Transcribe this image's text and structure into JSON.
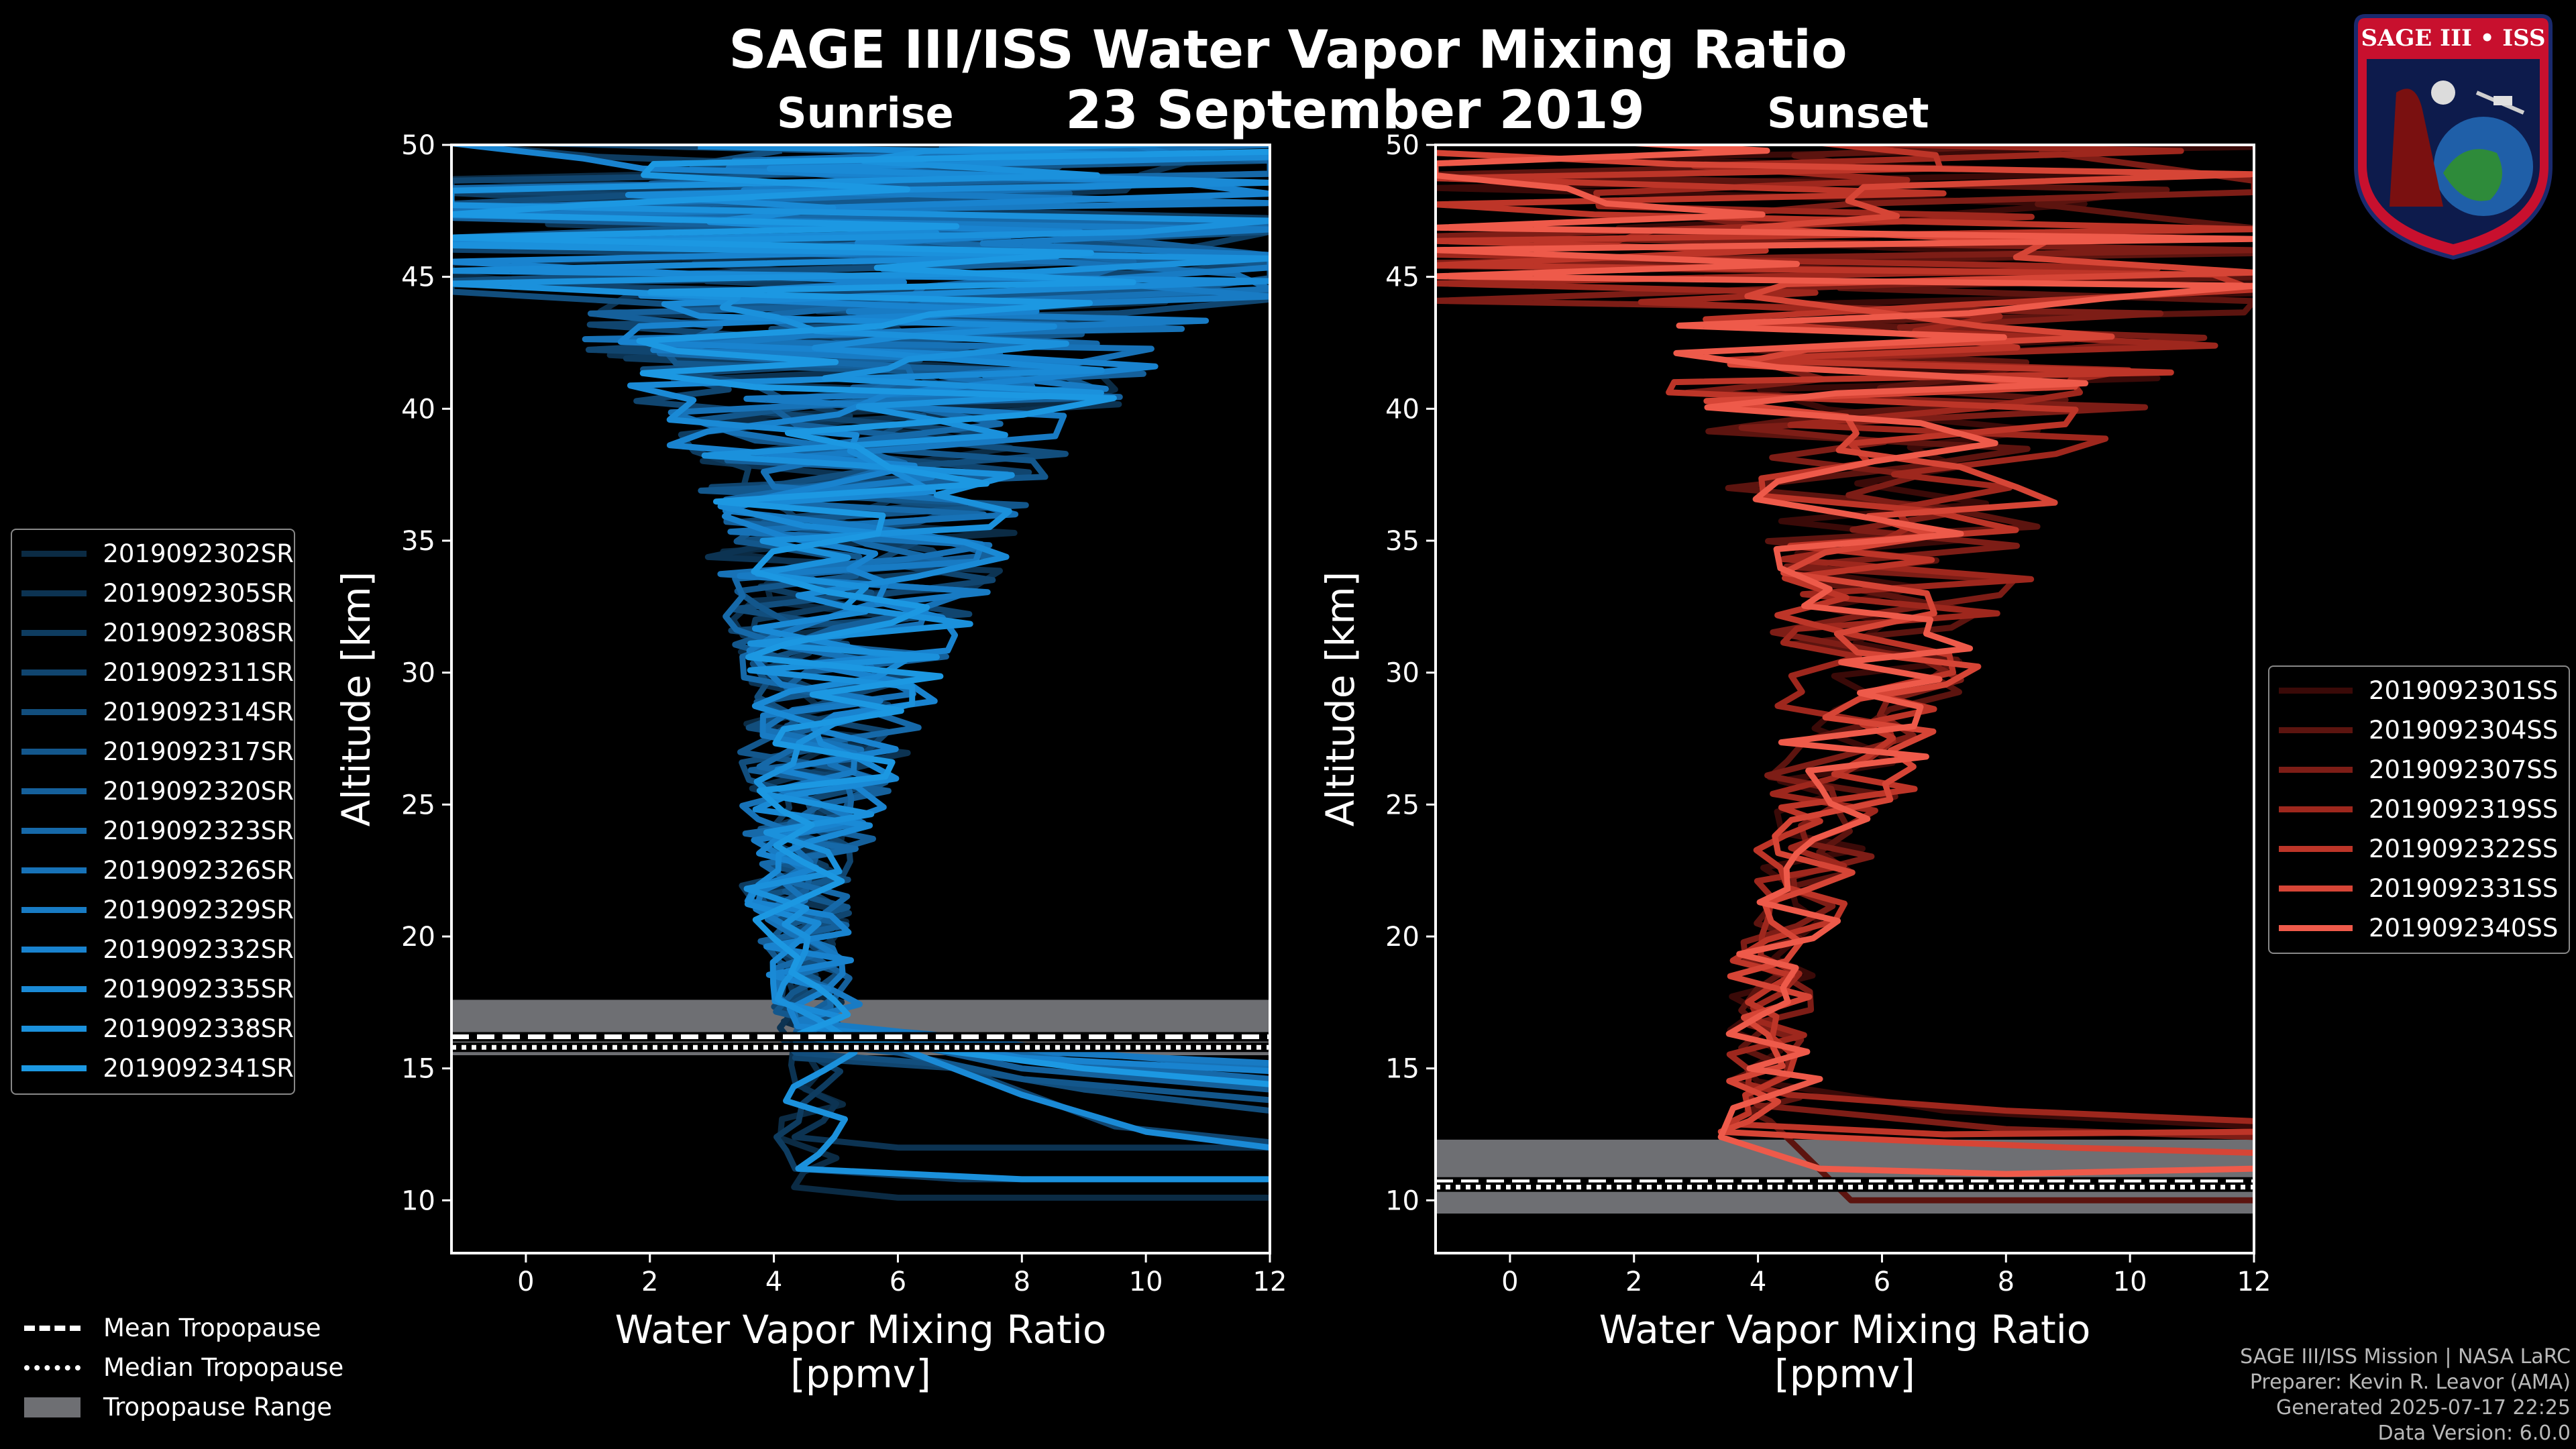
{
  "title": "SAGE III/ISS Water Vapor Mixing Ratio",
  "date": "23 September 2019",
  "footer": {
    "line1": "SAGE III/ISS Mission | NASA LaRC",
    "line2": "Preparer: Kevin R. Leavor (AMA)",
    "line3": "Generated 2025-07-17 22:25",
    "line4": "Data Version: 6.0.0"
  },
  "tropopause_legend": {
    "mean": "Mean Tropopause",
    "median": "Median Tropopause",
    "range": "Tropopause Range"
  },
  "badge": {
    "text": "SAGE III • ISS"
  },
  "colors": {
    "sunrise": "#1a8fd6",
    "sunset": "#e8574a",
    "tropopause_range": "#6e6f73"
  },
  "chart_data": [
    {
      "type": "line",
      "panel_title": "Sunrise",
      "xlabel_line1": "Water Vapor Mixing Ratio",
      "xlabel_line2": "[ppmv]",
      "ylabel": "Altitude [km]",
      "xlim": [
        -1.2,
        12
      ],
      "ylim": [
        8,
        50
      ],
      "xticks": [
        0,
        2,
        4,
        6,
        8,
        10,
        12
      ],
      "yticks": [
        10,
        15,
        20,
        25,
        30,
        35,
        40,
        45,
        50
      ],
      "mean_tropopause_km": 16.2,
      "median_tropopause_km": 15.8,
      "tropopause_range_km": [
        15.5,
        17.6
      ],
      "series": [
        {
          "name": "2019092302SR",
          "color": "#0b2b44",
          "seed": 11,
          "lower": [
            [
              12,
              10.1
            ],
            [
              6,
              10.1
            ]
          ]
        },
        {
          "name": "2019092305SR",
          "color": "#0c3352",
          "seed": 23,
          "lower": [
            [
              12,
              12.0
            ],
            [
              6,
              12.0
            ]
          ]
        },
        {
          "name": "2019092308SR",
          "color": "#0e3c60",
          "seed": 37,
          "lower": [
            [
              12,
              10.8
            ],
            [
              7,
              10.8
            ]
          ]
        },
        {
          "name": "2019092311SR",
          "color": "#10456f",
          "seed": 41,
          "lower": [
            [
              12,
              12.2
            ],
            [
              9.5,
              12.8
            ],
            [
              7,
              15.0
            ]
          ]
        },
        {
          "name": "2019092314SR",
          "color": "#124e7d",
          "seed": 53,
          "lower": [
            [
              12,
              13.4
            ],
            [
              9,
              14.2
            ],
            [
              6.5,
              15.2
            ]
          ]
        },
        {
          "name": "2019092317SR",
          "color": "#13578c",
          "seed": 67,
          "lower": [
            [
              12,
              13.8
            ],
            [
              8,
              14.6
            ],
            [
              6,
              15.6
            ]
          ]
        },
        {
          "name": "2019092320SR",
          "color": "#15609b",
          "seed": 71,
          "lower": [
            [
              12,
              14.2
            ],
            [
              8,
              15.0
            ],
            [
              6,
              16.0
            ]
          ]
        },
        {
          "name": "2019092323SR",
          "color": "#1669a9",
          "seed": 83,
          "lower": [
            [
              12,
              14.6
            ],
            [
              9,
              15.2
            ],
            [
              6.5,
              16.2
            ]
          ]
        },
        {
          "name": "2019092326SR",
          "color": "#1772b7",
          "seed": 97,
          "lower": [
            [
              12,
              15.0
            ],
            [
              9,
              15.6
            ],
            [
              6.5,
              16.3
            ]
          ]
        },
        {
          "name": "2019092329SR",
          "color": "#187bc4",
          "seed": 101,
          "lower": [
            [
              12,
              15.2
            ],
            [
              8.5,
              15.6
            ],
            [
              6,
              16.4
            ]
          ]
        },
        {
          "name": "2019092332SR",
          "color": "#1983cf",
          "seed": 113,
          "lower": [
            [
              12,
              14.9
            ],
            [
              8,
              15.4
            ],
            [
              6,
              16.2
            ]
          ]
        },
        {
          "name": "2019092335SR",
          "color": "#1a8ad6",
          "seed": 127,
          "lower": [
            [
              12,
              12.0
            ],
            [
              10,
              12.6
            ],
            [
              8,
              14.0
            ],
            [
              6,
              15.8
            ]
          ]
        },
        {
          "name": "2019092338SR",
          "color": "#1b91dc",
          "seed": 131,
          "lower": [
            [
              12,
              10.8
            ],
            [
              8,
              10.8
            ]
          ]
        },
        {
          "name": "2019092341SR",
          "color": "#1c98e2",
          "seed": 149,
          "lower": [
            [
              12,
              14.4
            ],
            [
              9,
              15.0
            ],
            [
              6,
              15.9
            ]
          ]
        }
      ]
    },
    {
      "type": "line",
      "panel_title": "Sunset",
      "xlabel_line1": "Water Vapor Mixing Ratio",
      "xlabel_line2": "[ppmv]",
      "ylabel": "Altitude [km]",
      "xlim": [
        -1.2,
        12
      ],
      "ylim": [
        8,
        50
      ],
      "xticks": [
        0,
        2,
        4,
        6,
        8,
        10,
        12
      ],
      "yticks": [
        10,
        15,
        20,
        25,
        30,
        35,
        40,
        45,
        50
      ],
      "mean_tropopause_km": 10.7,
      "median_tropopause_km": 10.5,
      "tropopause_range_km": [
        9.5,
        12.3
      ],
      "series": [
        {
          "name": "2019092301SS",
          "color": "#3a0a08",
          "seed": 7,
          "lower": [
            [
              12,
              12.8
            ],
            [
              7,
              13.4
            ],
            [
              4,
              14.5
            ]
          ]
        },
        {
          "name": "2019092304SS",
          "color": "#5c140f",
          "seed": 19,
          "lower": [
            [
              12,
              10.0
            ],
            [
              5.5,
              10.0
            ],
            [
              4.2,
              13.0
            ]
          ]
        },
        {
          "name": "2019092307SS",
          "color": "#7d1d16",
          "seed": 29,
          "lower": [
            [
              12,
              12.4
            ],
            [
              8,
              12.7
            ],
            [
              4,
              13.6
            ]
          ]
        },
        {
          "name": "2019092319SS",
          "color": "#9e271d",
          "seed": 43,
          "lower": [
            [
              12,
              13.0
            ],
            [
              8,
              13.4
            ],
            [
              4.5,
              14.0
            ]
          ]
        },
        {
          "name": "2019092322SS",
          "color": "#bd3528",
          "seed": 59,
          "lower": [
            [
              12,
              12.6
            ],
            [
              7,
              12.5
            ],
            [
              3.5,
              12.9
            ]
          ]
        },
        {
          "name": "2019092331SS",
          "color": "#d64536",
          "seed": 61,
          "lower": [
            [
              12,
              11.8
            ],
            [
              9,
              12.0
            ],
            [
              5,
              12.4
            ],
            [
              3.4,
              12.6
            ]
          ]
        },
        {
          "name": "2019092340SS",
          "color": "#ee5a4a",
          "seed": 79,
          "lower": [
            [
              12,
              11.2
            ],
            [
              8,
              11.0
            ],
            [
              5,
              11.2
            ],
            [
              3.4,
              12.4
            ],
            [
              3.6,
              13.5
            ],
            [
              5,
              14.6
            ]
          ]
        }
      ]
    }
  ]
}
